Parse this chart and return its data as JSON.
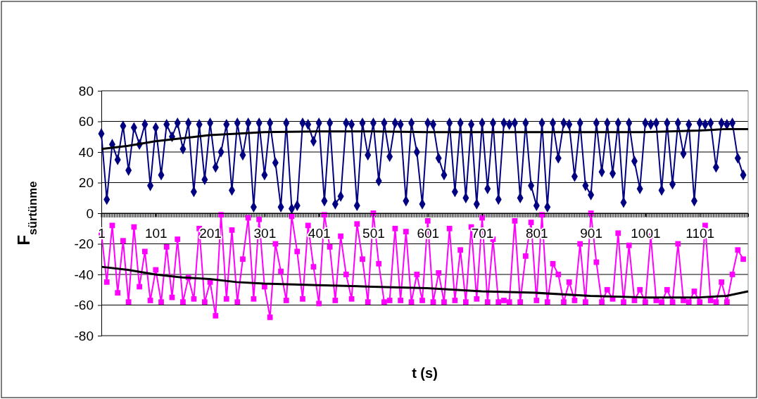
{
  "chart_data": {
    "type": "line",
    "xlabel": "t (s)",
    "ylabel": "F$_{sürtünme}$",
    "xlim": [
      1,
      1190
    ],
    "xticks": [
      1,
      101,
      201,
      301,
      401,
      501,
      601,
      701,
      801,
      901,
      1001,
      1101
    ],
    "ylim": [
      -80,
      80
    ],
    "yticks": [
      -80,
      -60,
      -40,
      -20,
      0,
      20,
      40,
      60,
      80
    ],
    "grid": "y",
    "x": [
      1,
      11,
      21,
      31,
      41,
      51,
      61,
      71,
      81,
      91,
      101,
      111,
      121,
      131,
      141,
      151,
      161,
      171,
      181,
      191,
      201,
      211,
      221,
      231,
      241,
      251,
      261,
      271,
      281,
      291,
      301,
      311,
      321,
      331,
      341,
      351,
      361,
      371,
      381,
      391,
      401,
      411,
      421,
      431,
      441,
      451,
      461,
      471,
      481,
      491,
      501,
      511,
      521,
      531,
      541,
      551,
      561,
      571,
      581,
      591,
      601,
      611,
      621,
      631,
      641,
      651,
      661,
      671,
      681,
      691,
      701,
      711,
      721,
      731,
      741,
      751,
      761,
      771,
      781,
      791,
      801,
      811,
      821,
      831,
      841,
      851,
      861,
      871,
      881,
      891,
      901,
      911,
      921,
      931,
      941,
      951,
      961,
      971,
      981,
      991,
      1001,
      1011,
      1021,
      1031,
      1041,
      1051,
      1061,
      1071,
      1081,
      1091,
      1101,
      1111,
      1121,
      1131,
      1141,
      1151,
      1161,
      1171,
      1181
    ],
    "series": [
      {
        "marker": "diamond",
        "color": "#000080",
        "values": [
          52,
          9,
          45,
          35,
          57,
          28,
          56,
          45,
          58,
          18,
          56,
          25,
          58,
          50,
          59,
          42,
          59,
          14,
          58,
          22,
          59,
          30,
          40,
          58,
          15,
          59,
          38,
          59,
          4,
          59,
          25,
          59,
          33,
          4,
          59,
          3,
          5,
          59,
          58,
          47,
          59,
          8,
          59,
          6,
          11,
          59,
          58,
          5,
          59,
          38,
          59,
          21,
          59,
          37,
          59,
          58,
          8,
          59,
          40,
          6,
          59,
          58,
          36,
          25,
          59,
          14,
          59,
          10,
          58,
          6,
          59,
          16,
          59,
          9,
          59,
          58,
          59,
          10,
          59,
          18,
          5,
          59,
          4,
          59,
          36,
          59,
          58,
          24,
          59,
          18,
          12,
          59,
          27,
          59,
          26,
          59,
          7,
          59,
          34,
          16,
          59,
          58,
          59,
          15,
          59,
          19,
          59,
          39,
          58,
          8,
          59,
          58,
          59,
          30,
          59,
          58,
          59,
          36,
          25
        ]
      },
      {
        "marker": "square",
        "color": "#ff00ff",
        "values": [
          -13,
          -45,
          -8,
          -52,
          -18,
          -58,
          -9,
          -48,
          -25,
          -57,
          -37,
          -58,
          -22,
          -55,
          -17,
          -58,
          -42,
          -56,
          -10,
          -58,
          -45,
          -67,
          -1,
          -56,
          -11,
          -58,
          -30,
          -3,
          -56,
          -4,
          -48,
          -68,
          -20,
          -38,
          -57,
          -2,
          -25,
          -56,
          -8,
          -35,
          -59,
          -1,
          -22,
          -57,
          -15,
          -40,
          -56,
          -7,
          -30,
          -58,
          0,
          -33,
          -58,
          -57,
          -10,
          -57,
          -12,
          -58,
          -40,
          -57,
          -5,
          -58,
          -39,
          -58,
          -10,
          -57,
          -24,
          -58,
          -9,
          -56,
          -3,
          -58,
          -17,
          -58,
          -57,
          -58,
          -5,
          -58,
          -28,
          -6,
          -57,
          -1,
          -58,
          -33,
          -40,
          -58,
          -45,
          -57,
          -20,
          -58,
          0,
          -32,
          -58,
          -50,
          -56,
          -13,
          -58,
          -21,
          -57,
          -50,
          -58,
          -15,
          -57,
          -58,
          -50,
          -58,
          -20,
          -57,
          -58,
          -51,
          -58,
          -8,
          -57,
          -58,
          -45,
          -58,
          -40,
          -24,
          -30
        ]
      },
      {
        "marker": "none",
        "color": "#000000",
        "x": [
          1,
          50,
          100,
          150,
          200,
          250,
          300,
          400,
          500,
          600,
          700,
          800,
          900,
          1000,
          1100,
          1150,
          1190
        ],
        "values": [
          42,
          44,
          47,
          49,
          51,
          52,
          53,
          53.5,
          53.5,
          53,
          53,
          53,
          53,
          53,
          54,
          55,
          55
        ]
      },
      {
        "marker": "none",
        "color": "#000000",
        "x": [
          1,
          50,
          100,
          150,
          200,
          250,
          300,
          400,
          500,
          600,
          700,
          800,
          900,
          1000,
          1100,
          1150,
          1190
        ],
        "values": [
          -35,
          -37,
          -40,
          -42,
          -43,
          -45,
          -46,
          -47,
          -48,
          -49,
          -51,
          -52,
          -54,
          -55,
          -55,
          -54,
          -51
        ]
      }
    ]
  }
}
